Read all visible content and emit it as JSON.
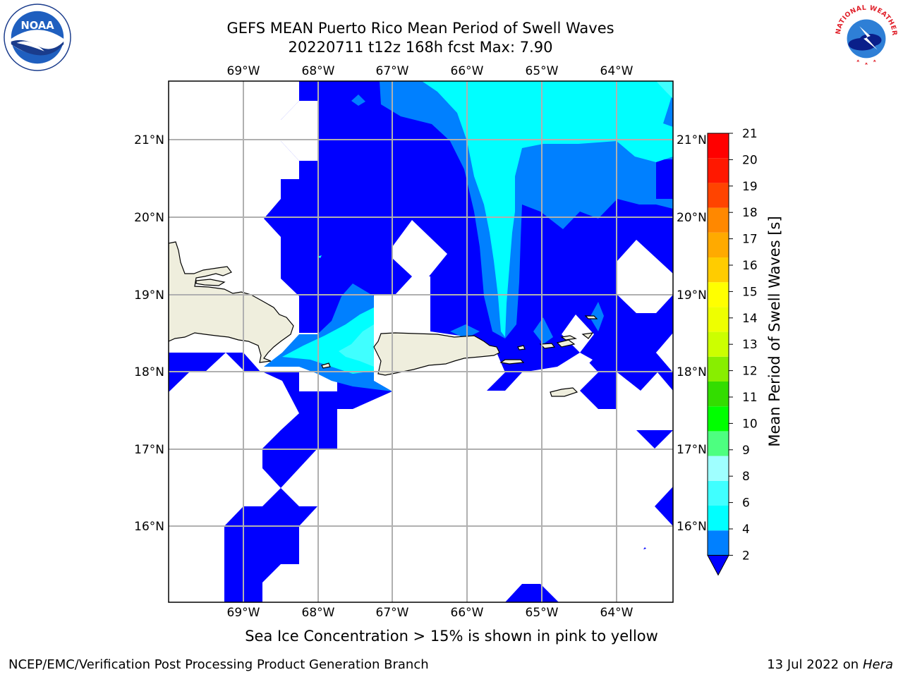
{
  "header": {
    "title_line1": "GEFS MEAN Puerto Rico Mean Period of Swell Waves",
    "title_line2": "20220711 t12z 168h fcst   Max: 7.90"
  },
  "logos": {
    "noaa_text": "NOAA",
    "noaa_ring_text": "NATIONAL OCEANIC AND ATMOSPHERIC ADMINISTRATION · U.S. DEPARTMENT OF COMMERCE",
    "nws_ring_text": "NATIONAL WEATHER SERVICE"
  },
  "map": {
    "lon_labels": [
      "69°W",
      "68°W",
      "67°W",
      "66°W",
      "65°W",
      "64°W"
    ],
    "lat_labels": [
      "21°N",
      "20°N",
      "19°N",
      "18°N",
      "17°N",
      "16°N"
    ],
    "grid": true,
    "land_color": "#efeedd",
    "ocean_color": "#ffffff"
  },
  "colorbar": {
    "label": "Mean Period of Swell Waves [s]",
    "ticks": [
      "2",
      "4",
      "6",
      "8",
      "9",
      "10",
      "11",
      "12",
      "13",
      "14",
      "15",
      "16",
      "17",
      "18",
      "19",
      "20",
      "21"
    ],
    "colors": [
      "#0000ff",
      "#0080ff",
      "#00ffff",
      "#40ffff",
      "#9fffff",
      "#4dff80",
      "#00ff00",
      "#33dd00",
      "#88ee00",
      "#ccff00",
      "#eeff00",
      "#ffff00",
      "#ffcc00",
      "#ffaa00",
      "#ff8800",
      "#ff4400",
      "#ff1800",
      "#ff0000"
    ]
  },
  "caption": "Sea Ice Concentration > 15% is shown in pink to yellow",
  "footer": {
    "left": "NCEP/EMC/Verification Post Processing Product Generation Branch",
    "right_date": "13 Jul 2022 on ",
    "right_host": "Hera"
  }
}
